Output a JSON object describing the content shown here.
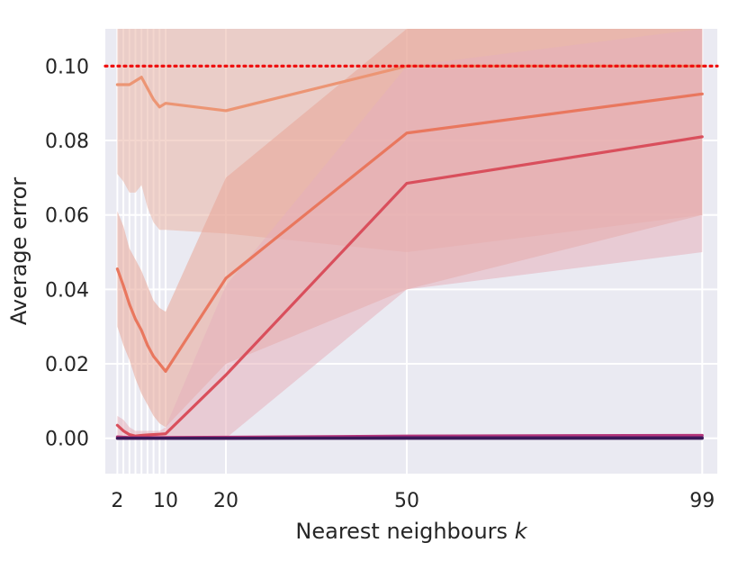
{
  "chart_data": {
    "type": "line",
    "title": "",
    "xlabel": "Nearest neighbours",
    "xlabel_var": "k",
    "ylabel": "Average error",
    "xlim": [
      0.0,
      101.5
    ],
    "ylim": [
      -0.0095,
      0.11
    ],
    "x": [
      2,
      3,
      4,
      5,
      6,
      7,
      8,
      9,
      10,
      20,
      50,
      99
    ],
    "xticks": [
      2,
      10,
      20,
      50,
      99
    ],
    "yticks": [
      0.0,
      0.02,
      0.04,
      0.06,
      0.08,
      0.1
    ],
    "ytick_labels": [
      "0.00",
      "0.02",
      "0.04",
      "0.06",
      "0.08",
      "0.10"
    ],
    "grid": true,
    "reference_line": {
      "y": 0.1,
      "color": "#ee1111",
      "style": "dotted"
    },
    "series": [
      {
        "color": "#ec9574",
        "band_color": "#e9b5a6",
        "values": [
          0.095,
          0.095,
          0.095,
          0.096,
          0.097,
          0.094,
          0.091,
          0.089,
          0.09,
          0.088,
          0.1,
          0.1
        ],
        "lower": [
          0.071,
          0.069,
          0.066,
          0.066,
          0.068,
          0.062,
          0.058,
          0.056,
          0.056,
          0.055,
          0.05,
          0.06
        ],
        "upper": [
          0.11,
          0.11,
          0.11,
          0.11,
          0.11,
          0.11,
          0.11,
          0.11,
          0.11,
          0.11,
          0.11,
          0.11
        ]
      },
      {
        "color": "#e9775e",
        "band_color": "#e8a598",
        "values": [
          0.0455,
          0.041,
          0.036,
          0.032,
          0.029,
          0.025,
          0.022,
          0.02,
          0.018,
          0.043,
          0.082,
          0.0925
        ],
        "lower": [
          0.03,
          0.025,
          0.021,
          0.016,
          0.012,
          0.009,
          0.006,
          0.004,
          0.003,
          0.02,
          0.04,
          0.06
        ],
        "upper": [
          0.061,
          0.057,
          0.051,
          0.048,
          0.045,
          0.041,
          0.037,
          0.035,
          0.034,
          0.07,
          0.11,
          0.11
        ]
      },
      {
        "color": "#d94f5c",
        "band_color": "#e6b0bc",
        "values": [
          0.0035,
          0.002,
          0.001,
          0.0006,
          0.0008,
          0.0009,
          0.001,
          0.0011,
          0.0012,
          0.017,
          0.0685,
          0.081
        ],
        "lower": [
          0.0,
          0.0,
          0.0,
          0.0,
          0.0,
          0.0,
          0.0,
          0.0,
          0.0,
          0.0,
          0.04,
          0.05
        ],
        "upper": [
          0.006,
          0.005,
          0.003,
          0.002,
          0.002,
          0.002,
          0.002,
          0.002,
          0.003,
          0.041,
          0.1,
          0.11
        ]
      },
      {
        "color": "#b5367a",
        "values": [
          0.0004,
          0.0003,
          0.0002,
          0.0002,
          0.0002,
          0.0002,
          0.0002,
          0.0002,
          0.0002,
          0.0003,
          0.0006,
          0.0008
        ]
      },
      {
        "color": "#6d2070",
        "values": [
          0.0,
          0.0,
          0.0,
          0.0,
          0.0,
          0.0,
          0.0,
          0.0,
          0.0,
          0.0,
          0.0002,
          0.0002
        ]
      },
      {
        "color": "#3a1a58",
        "values": [
          0.0,
          0.0,
          0.0,
          0.0,
          0.0,
          0.0,
          0.0,
          0.0,
          0.0,
          0.0,
          0.0,
          0.0
        ]
      }
    ]
  }
}
